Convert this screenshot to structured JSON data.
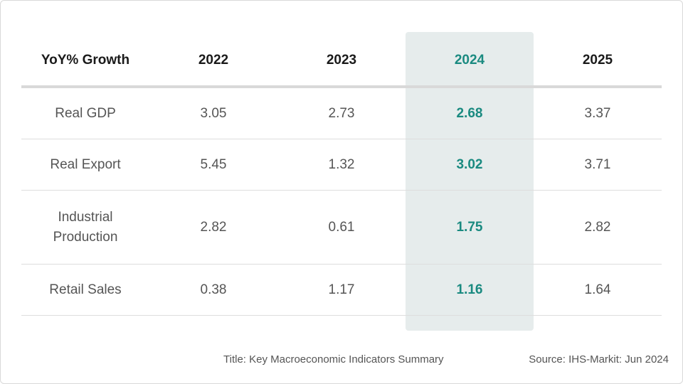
{
  "colors": {
    "highlight_background": "#e6ecec",
    "highlight_text": "#1a8a80",
    "header_text": "#1a1a1a",
    "body_text": "#555555",
    "rule": "#d9d9d9"
  },
  "footer": {
    "title": "Title: Key Macroeconomic Indicators Summary",
    "source": "Source: IHS-Markit: Jun 2024"
  },
  "chart_data": {
    "type": "table",
    "title": "Key Macroeconomic Indicators Summary",
    "source": "IHS-Markit: Jun 2024",
    "header": "YoY% Growth",
    "columns": [
      "2022",
      "2023",
      "2024",
      "2025"
    ],
    "highlighted_column": "2024",
    "rows": [
      {
        "label": "Real GDP",
        "values": [
          "3.05",
          "2.73",
          "2.68",
          "3.37"
        ]
      },
      {
        "label": "Real Export",
        "values": [
          "5.45",
          "1.32",
          "3.02",
          "3.71"
        ]
      },
      {
        "label": "Industrial Production",
        "values": [
          "2.82",
          "0.61",
          "1.75",
          "2.82"
        ]
      },
      {
        "label": "Retail Sales",
        "values": [
          "0.38",
          "1.17",
          "1.16",
          "1.64"
        ]
      }
    ]
  }
}
